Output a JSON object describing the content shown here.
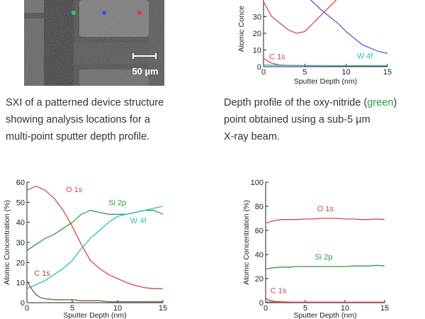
{
  "image_panel": {
    "scale_bar_label": "50 µm",
    "marker_colors": [
      "#33cc55",
      "#3355ee",
      "#ee3344"
    ]
  },
  "captions": {
    "left": {
      "lines": [
        "SXI of a patterned device structure",
        "showing analysis locations for a",
        "multi-point sputter depth profile."
      ]
    },
    "right": {
      "line1_pre": "Depth profile of the oxy-nitride (",
      "line1_highlight": "green",
      "line1_post": ")",
      "line2": "point obtained using a sub-5 µm",
      "line3": "X-ray beam."
    }
  },
  "colors": {
    "o1s": "#d9464b",
    "si2p": "#2f9a48",
    "w4f": "#2fb9c8",
    "c1s": "#8a5a3a",
    "blue": "#4a5fc9",
    "axis": "#222222",
    "highlight_green": "#2a9a3a"
  },
  "chart_data": [
    {
      "id": "top-right",
      "type": "line",
      "ylabel": "Atomic Conce",
      "xlabel": "Sputter Depth (nm)",
      "xlim": [
        0,
        15
      ],
      "ylim": [
        0,
        40
      ],
      "xticks": [
        0,
        5,
        10,
        15
      ],
      "yticks": [
        0,
        10,
        20,
        30
      ],
      "series": [
        {
          "name": "",
          "color_key": "o1s",
          "x": [
            0,
            1,
            2,
            3,
            4,
            5,
            6,
            7,
            8,
            9
          ],
          "y": [
            39,
            30,
            26,
            22,
            20,
            21,
            26,
            31,
            36,
            41
          ]
        },
        {
          "name": "",
          "color_key": "blue",
          "x": [
            5.5,
            7,
            8,
            9,
            10,
            11,
            12,
            13,
            14,
            15
          ],
          "y": [
            41,
            34,
            30,
            26,
            21,
            17,
            13,
            11,
            9,
            8
          ]
        },
        {
          "name": "C 1s",
          "color_key": "o1s",
          "x": [
            0,
            0.5,
            1,
            2,
            3,
            4,
            6,
            8,
            10,
            12,
            15
          ],
          "y": [
            5,
            3.5,
            2,
            1,
            0.8,
            0.7,
            0.6,
            0.6,
            0.5,
            0.5,
            0.5
          ]
        },
        {
          "name": "W 4f",
          "color_key": "w4f",
          "x": [
            0,
            2,
            4,
            6,
            8,
            10,
            12,
            15
          ],
          "y": [
            1,
            0.8,
            0.7,
            0.7,
            0.6,
            0.6,
            0.6,
            0.6
          ]
        }
      ],
      "labels": [
        {
          "text": "C 1s",
          "x": 0.7,
          "y": 4.5,
          "color_key": "o1s"
        },
        {
          "text": "W 4f",
          "x": 11.3,
          "y": 5,
          "color_key": "w4f"
        }
      ]
    },
    {
      "id": "bottom-left",
      "type": "line",
      "ylabel": "Atomic Concentration (%)",
      "xlabel": "Sputter Depth (nm)",
      "xlim": [
        0,
        15
      ],
      "ylim": [
        0,
        60
      ],
      "xticks": [
        0,
        5,
        10,
        15
      ],
      "yticks": [
        0,
        10,
        20,
        30,
        40,
        50,
        60
      ],
      "series": [
        {
          "name": "O 1s",
          "color_key": "o1s",
          "x": [
            0,
            1,
            2,
            3,
            4,
            5,
            6,
            7,
            8,
            9,
            10,
            11,
            12,
            13,
            14,
            15
          ],
          "y": [
            56,
            58,
            56,
            52,
            46,
            38,
            29,
            21,
            17,
            14,
            12,
            10,
            8.5,
            7.5,
            7,
            7
          ]
        },
        {
          "name": "Si 2p",
          "color_key": "si2p",
          "x": [
            0,
            1,
            2,
            3,
            4,
            5,
            6,
            7,
            8,
            9,
            10,
            11,
            12,
            13,
            14,
            15
          ],
          "y": [
            26,
            29,
            32,
            34,
            37,
            40,
            44,
            46,
            45,
            44,
            44,
            44,
            45,
            46,
            46,
            44
          ]
        },
        {
          "name": "W 4f",
          "color_key": "w4f",
          "x": [
            0,
            1,
            2,
            3,
            4,
            5,
            6,
            7,
            8,
            9,
            10,
            11,
            12,
            13,
            14,
            15
          ],
          "y": [
            7,
            9,
            11,
            14,
            17,
            21,
            27,
            32,
            36,
            40,
            43,
            44,
            45,
            46,
            47,
            48
          ]
        },
        {
          "name": "C 1s",
          "color_key": "c1s",
          "x": [
            0,
            0.5,
            1,
            1.5,
            2,
            3,
            4,
            5,
            6,
            7,
            8,
            9,
            10,
            11,
            12,
            13,
            14,
            15
          ],
          "y": [
            11,
            7,
            4,
            2.5,
            2,
            1.5,
            1.5,
            1.5,
            1,
            1,
            1,
            0.5,
            0.5,
            0.5,
            0.5,
            0.5,
            0.5,
            0.5
          ]
        }
      ],
      "labels": [
        {
          "text": "O 1s",
          "x": 4.3,
          "y": 55,
          "color_key": "o1s"
        },
        {
          "text": "Si 2p",
          "x": 9.0,
          "y": 48.5,
          "color_key": "si2p"
        },
        {
          "text": "W 4f",
          "x": 11.4,
          "y": 39.5,
          "color_key": "w4f"
        },
        {
          "text": "C 1s",
          "x": 0.8,
          "y": 13.5,
          "color_key": "c1s"
        }
      ]
    },
    {
      "id": "bottom-right",
      "type": "line",
      "ylabel": "Atomic Concentration (%)",
      "xlabel": "Sputter Depth (nm)",
      "xlim": [
        0,
        15
      ],
      "ylim": [
        0,
        100
      ],
      "xticks": [
        0,
        5,
        10,
        15
      ],
      "yticks": [
        0,
        20,
        40,
        60,
        80,
        100
      ],
      "series": [
        {
          "name": "O 1s",
          "color_key": "o1s",
          "x": [
            0,
            1,
            2,
            3,
            4,
            5,
            6,
            7,
            8,
            9,
            10,
            11,
            12,
            13,
            14,
            15
          ],
          "y": [
            66,
            68,
            69,
            69,
            69,
            69.5,
            69.5,
            70,
            70,
            70,
            69.5,
            69.5,
            69,
            69,
            69.5,
            69
          ]
        },
        {
          "name": "Si 2p",
          "color_key": "si2p",
          "x": [
            0,
            1,
            2,
            3,
            4,
            5,
            6,
            7,
            8,
            9,
            10,
            11,
            12,
            13,
            14,
            15
          ],
          "y": [
            28,
            29,
            29.5,
            29.5,
            30,
            30,
            30,
            30,
            30,
            30,
            30,
            30.5,
            30.5,
            30.5,
            31,
            30.5
          ]
        },
        {
          "name": "C 1s",
          "color_key": "c1s",
          "x": [
            0,
            0.5,
            1,
            2,
            3,
            5,
            7,
            9,
            11,
            13,
            15
          ],
          "y": [
            3.5,
            2,
            1.2,
            0.8,
            0.6,
            0.5,
            0.5,
            0.4,
            0.4,
            0.4,
            0.4
          ]
        },
        {
          "name": "",
          "color_key": "o1s",
          "x": [
            0,
            2,
            4,
            6,
            8,
            10,
            12,
            15
          ],
          "y": [
            0.6,
            0.4,
            0.4,
            0.4,
            0.4,
            0.4,
            0.4,
            0.4
          ]
        }
      ],
      "labels": [
        {
          "text": "O 1s",
          "x": 6.5,
          "y": 76,
          "color_key": "o1s"
        },
        {
          "text": "Si 2p",
          "x": 6.2,
          "y": 36,
          "color_key": "si2p"
        },
        {
          "text": "C 1s",
          "x": 0.6,
          "y": 8,
          "color_key": "o1s"
        }
      ]
    }
  ]
}
